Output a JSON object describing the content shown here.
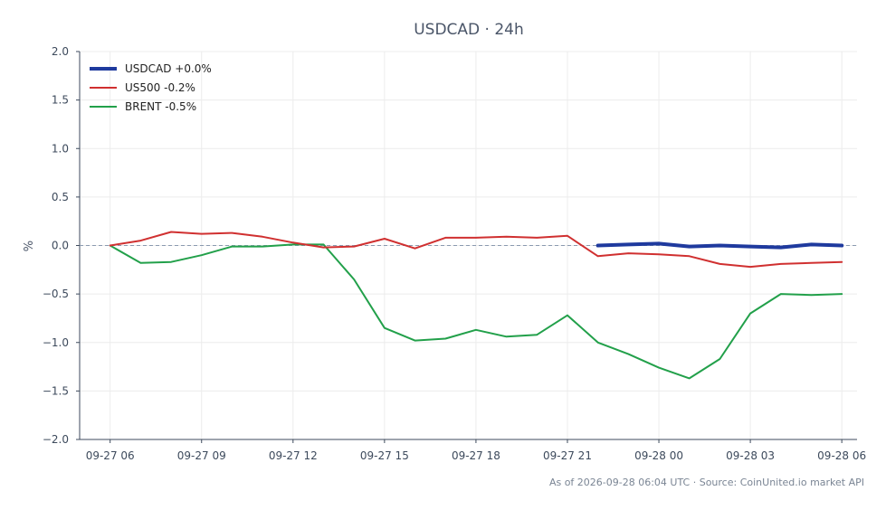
{
  "chart_data": {
    "type": "line",
    "title": "USDCAD · 24h",
    "xlabel": "",
    "ylabel": "%",
    "ylim": [
      -2.0,
      2.0
    ],
    "yticks": [
      2.0,
      1.5,
      1.0,
      0.5,
      0.0,
      -0.5,
      -1.0,
      -1.5,
      -2.0
    ],
    "ytick_labels": [
      "2.0",
      "1.5",
      "1.0",
      "0.5",
      "0.0",
      "−0.5",
      "−1.0",
      "−1.5",
      "−2.0"
    ],
    "xlim": [
      "09-27 05:00",
      "09-28 06:30"
    ],
    "xtick_labels": [
      "09-27 06",
      "09-27 09",
      "09-27 12",
      "09-27 15",
      "09-27 18",
      "09-27 21",
      "09-28 00",
      "09-28 03",
      "09-28 06"
    ],
    "grid": true,
    "legend_position": "top-left",
    "baseline": 0.0,
    "series": [
      {
        "name": "USDCAD +0.0%",
        "color": "#1f3a9e",
        "x": [
          "09-27 22:00",
          "09-27 23:00",
          "09-28 00:00",
          "09-28 01:00",
          "09-28 02:00",
          "09-28 03:00",
          "09-28 04:00",
          "09-28 05:00",
          "09-28 06:00"
        ],
        "values": [
          0.0,
          0.01,
          0.02,
          -0.01,
          0.0,
          -0.01,
          -0.02,
          0.01,
          0.0
        ]
      },
      {
        "name": "US500 -0.2%",
        "color": "#d03030",
        "x": [
          "09-27 06:00",
          "09-27 07:00",
          "09-27 08:00",
          "09-27 09:00",
          "09-27 10:00",
          "09-27 11:00",
          "09-27 12:00",
          "09-27 13:00",
          "09-27 14:00",
          "09-27 15:00",
          "09-27 16:00",
          "09-27 17:00",
          "09-27 18:00",
          "09-27 19:00",
          "09-27 20:00",
          "09-27 21:00",
          "09-27 22:00",
          "09-27 23:00",
          "09-28 00:00",
          "09-28 01:00",
          "09-28 02:00",
          "09-28 03:00",
          "09-28 04:00",
          "09-28 05:00",
          "09-28 06:00"
        ],
        "values": [
          0.0,
          0.05,
          0.14,
          0.12,
          0.13,
          0.09,
          0.03,
          -0.02,
          -0.01,
          0.07,
          -0.03,
          0.08,
          0.08,
          0.09,
          0.08,
          0.1,
          -0.11,
          -0.08,
          -0.09,
          -0.11,
          -0.19,
          -0.22,
          -0.19,
          -0.18,
          -0.17
        ]
      },
      {
        "name": "BRENT -0.5%",
        "color": "#22a04a",
        "x": [
          "09-27 06:00",
          "09-27 07:00",
          "09-27 08:00",
          "09-27 09:00",
          "09-27 10:00",
          "09-27 11:00",
          "09-27 12:00",
          "09-27 13:00",
          "09-27 14:00",
          "09-27 15:00",
          "09-27 16:00",
          "09-27 17:00",
          "09-27 18:00",
          "09-27 19:00",
          "09-27 20:00",
          "09-27 21:00",
          "09-27 22:00",
          "09-27 23:00",
          "09-28 00:00",
          "09-28 01:00",
          "09-28 02:00",
          "09-28 03:00",
          "09-28 04:00",
          "09-28 05:00",
          "09-28 06:00"
        ],
        "values": [
          0.0,
          -0.18,
          -0.17,
          -0.1,
          -0.01,
          -0.01,
          0.01,
          0.01,
          -0.35,
          -0.85,
          -0.98,
          -0.96,
          -0.87,
          -0.94,
          -0.92,
          -0.72,
          -1.0,
          -1.12,
          -1.26,
          -1.37,
          -1.17,
          -0.7,
          -0.5,
          -0.51,
          -0.5
        ]
      }
    ]
  },
  "footer": {
    "source_note": "As of 2026-09-28 06:04 UTC · Source: CoinUnited.io market API"
  }
}
